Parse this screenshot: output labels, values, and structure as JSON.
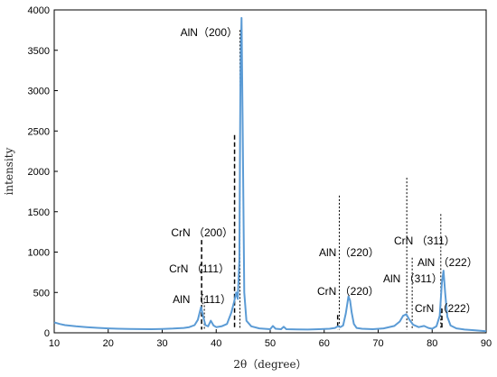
{
  "chart_data": {
    "type": "line",
    "title": "",
    "xlabel": "2θ（degree）",
    "ylabel": "intensity",
    "xlim": [
      10,
      90
    ],
    "ylim": [
      0,
      4000
    ],
    "x_ticks": [
      10,
      20,
      30,
      40,
      50,
      60,
      70,
      80,
      90
    ],
    "y_ticks": [
      0,
      500,
      1000,
      1500,
      2000,
      2500,
      3000,
      3500,
      4000
    ],
    "grid": false,
    "legend": "none",
    "line_color": "#5b9bd5",
    "series": [
      {
        "x": [
          10,
          11,
          12,
          14,
          16,
          18,
          20,
          22,
          24,
          26,
          28,
          30,
          32,
          34,
          35,
          36,
          36.6,
          37.2,
          37.6,
          38.0,
          38.5,
          39.0,
          39.5,
          40.0,
          41,
          42,
          42.8,
          43.3,
          43.7,
          44.0,
          44.3,
          44.5,
          44.7,
          44.9,
          45.2,
          45.6,
          46.5,
          48,
          50,
          50.5,
          51,
          52,
          52.5,
          53,
          55,
          57,
          59,
          61,
          62,
          62.5,
          63,
          63.5,
          64,
          64.5,
          64.8,
          65.1,
          65.5,
          66,
          67,
          69,
          71,
          73,
          74,
          74.6,
          75.2,
          75.8,
          76.5,
          77.5,
          78.5,
          79.3,
          80,
          80.8,
          81.4,
          81.8,
          82.1,
          82.4,
          82.8,
          83.4,
          84.5,
          86,
          88,
          90
        ],
        "y": [
          130,
          110,
          95,
          80,
          70,
          62,
          55,
          50,
          48,
          46,
          45,
          48,
          52,
          60,
          70,
          95,
          160,
          320,
          200,
          95,
          80,
          150,
          90,
          70,
          80,
          110,
          250,
          380,
          500,
          420,
          900,
          3200,
          3900,
          2600,
          500,
          150,
          80,
          55,
          45,
          85,
          50,
          45,
          75,
          45,
          42,
          40,
          45,
          50,
          60,
          80,
          70,
          90,
          240,
          450,
          400,
          250,
          110,
          60,
          50,
          45,
          55,
          85,
          140,
          210,
          230,
          160,
          100,
          70,
          85,
          60,
          50,
          80,
          210,
          620,
          770,
          500,
          200,
          90,
          55,
          40,
          30,
          20
        ]
      }
    ],
    "annotations": [
      {
        "label": "AlN（200）",
        "x": 44.4
      },
      {
        "label": "CrN （200）",
        "x": 43.4
      },
      {
        "label": "CrN （111）",
        "x": 37.3
      },
      {
        "label": "AlN （111）",
        "x": 37.8
      },
      {
        "label": "AlN （220）",
        "x": 62.8
      },
      {
        "label": "CrN （220）",
        "x": 62.5
      },
      {
        "label": "CrN （311）",
        "x": 75.3
      },
      {
        "label": "AlN （311）",
        "x": 76.3
      },
      {
        "label": "AlN （222）",
        "x": 81.6
      },
      {
        "label": "CrN （222）",
        "x": 81.8
      }
    ]
  }
}
